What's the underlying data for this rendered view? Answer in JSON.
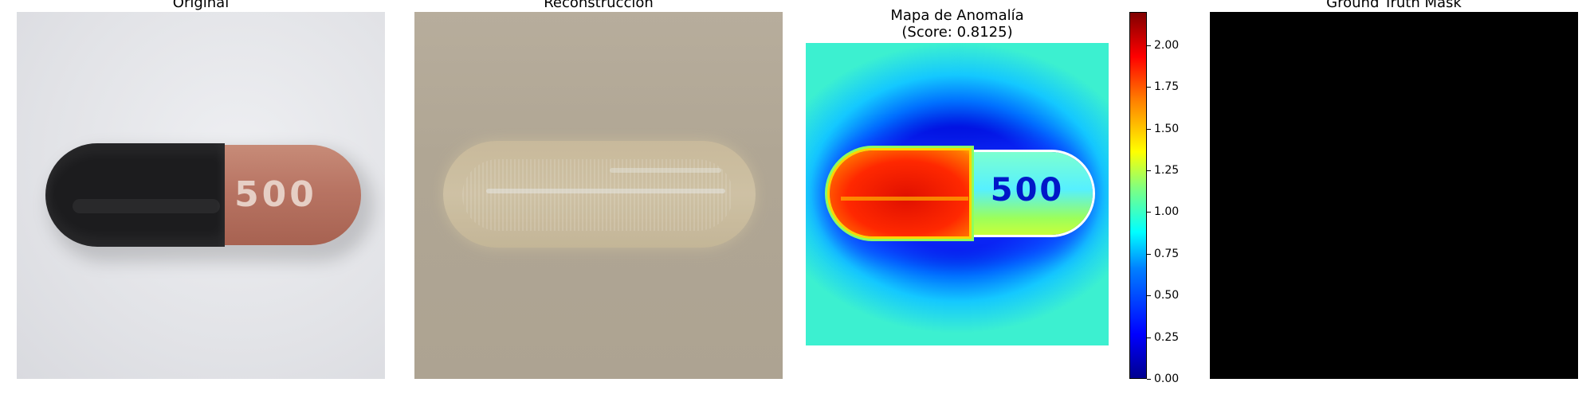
{
  "panels": {
    "original": {
      "title": "Original"
    },
    "reconstruction": {
      "title": "Reconstrucción"
    },
    "anomaly": {
      "title_line1": "Mapa de Anomalía",
      "title_line2": "(Score: 0.8125)",
      "score": 0.8125
    },
    "ground_truth": {
      "title": "Ground Truth Mask"
    }
  },
  "capsule_print": "500",
  "colorbar": {
    "colormap": "jet",
    "range": [
      0,
      2.2
    ],
    "ticks": [
      "0.00",
      "0.25",
      "0.50",
      "0.75",
      "1.00",
      "1.25",
      "1.50",
      "1.75",
      "2.00"
    ]
  },
  "colors": {
    "capsule_dark": "#1c1c1e",
    "capsule_red": "#b87463",
    "background": "#ffffff"
  }
}
